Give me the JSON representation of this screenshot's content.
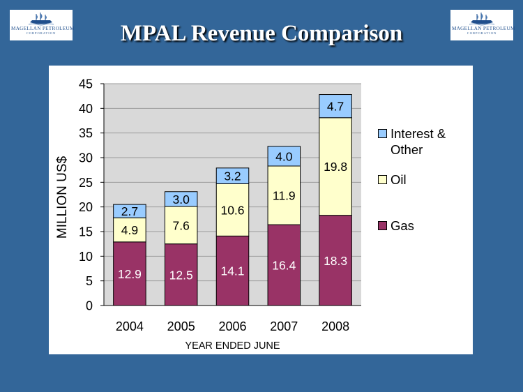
{
  "header": {
    "title": "MPAL Revenue Comparison",
    "logo": {
      "name": "MAGELLAN PETROLEUM",
      "sub": "CORPORATION",
      "icon": "sailing-ship-icon"
    }
  },
  "colors": {
    "background": "#336699",
    "plot_area": "#d9d9d9",
    "gas": "#993366",
    "oil": "#ffffcc",
    "interest_other": "#99ccff"
  },
  "chart_data": {
    "type": "bar",
    "stacked": true,
    "categories": [
      "2004",
      "2005",
      "2006",
      "2007",
      "2008"
    ],
    "series": [
      {
        "name": "Gas",
        "values": [
          12.9,
          12.5,
          14.1,
          16.4,
          18.3
        ],
        "labels": [
          "12.9",
          "12.5",
          "14.1",
          "16.4",
          "18.3"
        ],
        "color": "#993366",
        "label_color": "#ffffff"
      },
      {
        "name": "Oil",
        "values": [
          4.9,
          7.6,
          10.6,
          11.9,
          19.8
        ],
        "labels": [
          "4.9",
          "7.6",
          "10.6",
          "11.9",
          "19.8"
        ],
        "color": "#ffffcc",
        "label_color": "#000000"
      },
      {
        "name": "Interest & Other",
        "values": [
          2.7,
          3.0,
          3.2,
          4.0,
          4.7
        ],
        "labels": [
          "2.7",
          "3.0",
          "3.2",
          "4.0",
          "4.7"
        ],
        "color": "#99ccff",
        "label_color": "#000000"
      }
    ],
    "xlabel": "YEAR ENDED JUNE",
    "ylabel": "MILLION US$",
    "ylim": [
      0,
      45
    ],
    "yticks": [
      "0",
      "5",
      "10",
      "15",
      "20",
      "25",
      "30",
      "35",
      "40",
      "45"
    ],
    "grid": true,
    "legend": {
      "position": "right",
      "items": [
        {
          "line1": "Interest &",
          "line2": "Other",
          "color": "#99ccff"
        },
        {
          "line1": "Oil",
          "line2": "",
          "color": "#ffffcc"
        },
        {
          "line1": "Gas",
          "line2": "",
          "color": "#993366"
        }
      ]
    }
  }
}
